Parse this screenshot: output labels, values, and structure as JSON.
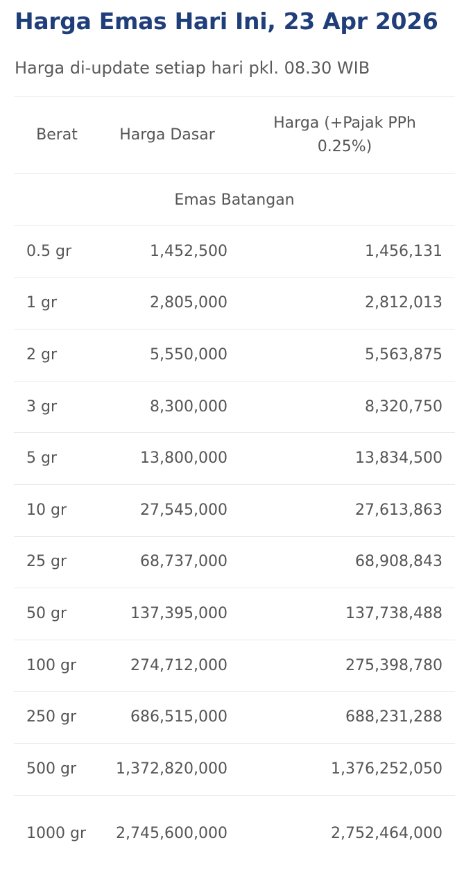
{
  "page": {
    "title": "Harga Emas Hari Ini, 23 Apr 2026",
    "subtitle": "Harga di-update setiap hari pkl. 08.30 WIB"
  },
  "table": {
    "headers": {
      "weight": "Berat",
      "base_price": "Harga Dasar",
      "price_with_tax": "Harga (+Pajak PPh 0.25%)"
    },
    "section_label": "Emas Batangan",
    "rows": [
      {
        "weight": "0.5 gr",
        "base_price": "1,452,500",
        "price_with_tax": "1,456,131"
      },
      {
        "weight": "1 gr",
        "base_price": "2,805,000",
        "price_with_tax": "2,812,013"
      },
      {
        "weight": "2 gr",
        "base_price": "5,550,000",
        "price_with_tax": "5,563,875"
      },
      {
        "weight": "3 gr",
        "base_price": "8,300,000",
        "price_with_tax": "8,320,750"
      },
      {
        "weight": "5 gr",
        "base_price": "13,800,000",
        "price_with_tax": "13,834,500"
      },
      {
        "weight": "10 gr",
        "base_price": "27,545,000",
        "price_with_tax": "27,613,863"
      },
      {
        "weight": "25 gr",
        "base_price": "68,737,000",
        "price_with_tax": "68,908,843"
      },
      {
        "weight": "50 gr",
        "base_price": "137,395,000",
        "price_with_tax": "137,738,488"
      },
      {
        "weight": "100 gr",
        "base_price": "274,712,000",
        "price_with_tax": "275,398,780"
      },
      {
        "weight": "250 gr",
        "base_price": "686,515,000",
        "price_with_tax": "688,231,288"
      },
      {
        "weight": "500 gr",
        "base_price": "1,372,820,000",
        "price_with_tax": "1,376,252,050"
      },
      {
        "weight": "1000 gr",
        "base_price": "2,745,600,000",
        "price_with_tax": "2,752,464,000"
      }
    ]
  },
  "colors": {
    "title": "#1f3e7a",
    "text": "#555555",
    "divider": "#e9e9e9"
  }
}
